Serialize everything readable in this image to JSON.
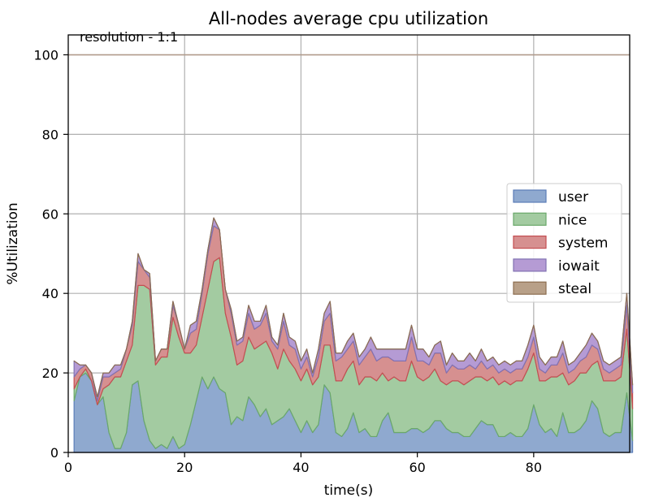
{
  "chart_data": {
    "type": "area",
    "stacked": true,
    "title": "All-nodes average cpu utilization",
    "xlabel": "time(s)",
    "ylabel": "%Utilization",
    "annotation": "resolution - 1:1",
    "xlim": [
      0,
      96.5
    ],
    "ylim": [
      0,
      105
    ],
    "xticks": [
      0,
      20,
      40,
      60,
      80
    ],
    "yticks": [
      0,
      20,
      40,
      60,
      80,
      100
    ],
    "grid": true,
    "legend_position": "center-right",
    "x": [
      1,
      2,
      3,
      4,
      5,
      6,
      7,
      8,
      9,
      10,
      11,
      12,
      13,
      14,
      15,
      16,
      17,
      18,
      19,
      20,
      21,
      22,
      23,
      24,
      25,
      26,
      27,
      28,
      29,
      30,
      31,
      32,
      33,
      34,
      35,
      36,
      37,
      38,
      39,
      40,
      41,
      42,
      43,
      44,
      45,
      46,
      47,
      48,
      49,
      50,
      51,
      52,
      53,
      54,
      55,
      56,
      57,
      58,
      59,
      60,
      61,
      62,
      63,
      64,
      65,
      66,
      67,
      68,
      69,
      70,
      71,
      72,
      73,
      74,
      75,
      76,
      77,
      78,
      79,
      80,
      81,
      82,
      83,
      84,
      85,
      86,
      87,
      88,
      89,
      90,
      91,
      92,
      93,
      94,
      95,
      96,
      97
    ],
    "series": [
      {
        "name": "user",
        "color": "#8fa9cf",
        "edge": "#5b7db8",
        "values": [
          13,
          19,
          20,
          18,
          12,
          14,
          5,
          1,
          1,
          5,
          17,
          18,
          8,
          3,
          1,
          2,
          1,
          4,
          1,
          2,
          7,
          13,
          19,
          16,
          19,
          16,
          15,
          7,
          9,
          8,
          14,
          12,
          9,
          11,
          7,
          8,
          9,
          11,
          8,
          5,
          8,
          5,
          7,
          17,
          15,
          5,
          4,
          6,
          10,
          5,
          6,
          4,
          4,
          8,
          10,
          5,
          5,
          5,
          6,
          6,
          5,
          6,
          8,
          8,
          6,
          5,
          5,
          4,
          4,
          6,
          8,
          7,
          7,
          4,
          4,
          5,
          4,
          4,
          6,
          12,
          7,
          5,
          6,
          4,
          10,
          5,
          5,
          6,
          8,
          13,
          11,
          5,
          4,
          5,
          5,
          15,
          3
        ]
      },
      {
        "name": "nice",
        "color": "#a3cba1",
        "edge": "#6aa86a",
        "values": [
          3,
          0,
          1,
          0,
          0,
          2,
          12,
          18,
          18,
          18,
          10,
          24,
          34,
          38,
          21,
          22,
          23,
          30,
          28,
          23,
          18,
          14,
          15,
          25,
          29,
          33,
          20,
          22,
          13,
          15,
          15,
          14,
          18,
          17,
          18,
          13,
          17,
          12,
          13,
          13,
          13,
          12,
          12,
          10,
          12,
          13,
          14,
          15,
          13,
          12,
          13,
          15,
          14,
          12,
          8,
          14,
          13,
          13,
          17,
          13,
          13,
          13,
          13,
          10,
          11,
          13,
          13,
          13,
          14,
          13,
          11,
          11,
          12,
          13,
          14,
          12,
          14,
          14,
          15,
          13,
          11,
          13,
          13,
          15,
          10,
          12,
          13,
          14,
          12,
          9,
          12,
          13,
          14,
          13,
          14,
          16,
          8
        ]
      },
      {
        "name": "system",
        "color": "#d69090",
        "edge": "#c44e52",
        "values": [
          3,
          2,
          1,
          2,
          1,
          3,
          2,
          1,
          2,
          3,
          5,
          6,
          4,
          3,
          1,
          2,
          2,
          3,
          3,
          1,
          5,
          4,
          6,
          9,
          9,
          7,
          6,
          6,
          5,
          5,
          6,
          5,
          5,
          7,
          3,
          5,
          7,
          4,
          5,
          3,
          3,
          2,
          5,
          6,
          8,
          5,
          6,
          5,
          5,
          5,
          5,
          7,
          5,
          4,
          6,
          4,
          5,
          5,
          6,
          4,
          5,
          3,
          4,
          7,
          3,
          4,
          3,
          4,
          4,
          2,
          4,
          3,
          3,
          3,
          3,
          3,
          3,
          3,
          3,
          4,
          3,
          2,
          3,
          3,
          5,
          3,
          3,
          3,
          4,
          5,
          3,
          3,
          2,
          3,
          3,
          6,
          4
        ]
      },
      {
        "name": "iowait",
        "color": "#b59bd4",
        "edge": "#8172b2",
        "values": [
          4,
          1,
          0,
          0,
          1,
          1,
          1,
          2,
          1,
          0,
          1,
          2,
          0,
          1,
          0,
          0,
          0,
          1,
          0,
          0,
          2,
          2,
          1,
          1,
          2,
          0,
          0,
          1,
          1,
          1,
          2,
          2,
          1,
          2,
          1,
          1,
          2,
          2,
          2,
          2,
          2,
          1,
          2,
          2,
          3,
          2,
          1,
          2,
          2,
          2,
          2,
          3,
          3,
          2,
          2,
          3,
          3,
          3,
          3,
          3,
          3,
          2,
          2,
          3,
          2,
          3,
          2,
          2,
          3,
          2,
          3,
          2,
          2,
          2,
          2,
          2,
          2,
          2,
          3,
          3,
          3,
          2,
          2,
          2,
          3,
          2,
          2,
          2,
          3,
          3,
          2,
          2,
          2,
          2,
          2,
          3,
          2
        ]
      },
      {
        "name": "steal",
        "color": "#b8a088",
        "edge": "#8c6d4f",
        "values": [
          0,
          0,
          0,
          0,
          0,
          0,
          0,
          0,
          0,
          0,
          0,
          0,
          0,
          0,
          0,
          0,
          0,
          0,
          0,
          0,
          0,
          0,
          0,
          0,
          0,
          0,
          0,
          0,
          0,
          0,
          0,
          0,
          0,
          0,
          0,
          0,
          0,
          0,
          0,
          0,
          0,
          0,
          0,
          0,
          0,
          0,
          0,
          0,
          0,
          0,
          0,
          0,
          0,
          0,
          0,
          0,
          0,
          0,
          0,
          0,
          0,
          0,
          0,
          0,
          0,
          0,
          0,
          0,
          0,
          0,
          0,
          0,
          0,
          0,
          0,
          0,
          0,
          0,
          0,
          0,
          0,
          0,
          0,
          0,
          0,
          0,
          0,
          0,
          0,
          0,
          0,
          0,
          0,
          0,
          0,
          0,
          0
        ]
      }
    ],
    "reference_line": {
      "y": 100,
      "color": "#b09a8a"
    }
  }
}
